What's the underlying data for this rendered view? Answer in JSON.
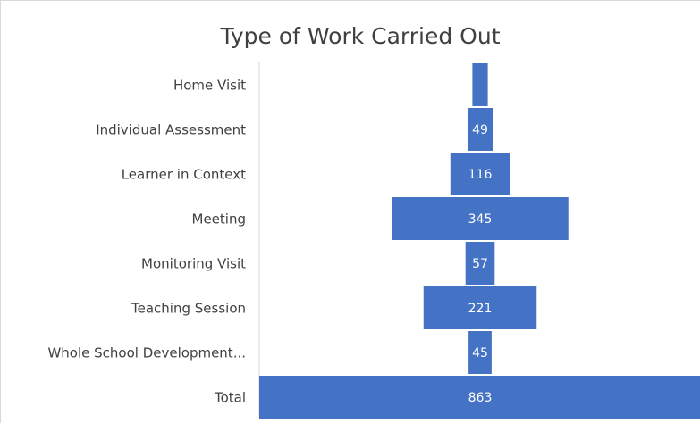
{
  "chart_data": {
    "type": "funnel",
    "title": "Type of Work Carried Out",
    "categories": [
      "Home Visit",
      "Individual Assessment",
      "Learner in Context",
      "Meeting",
      "Monitoring Visit",
      "Teaching Session",
      "Whole School Development...",
      "Total"
    ],
    "values": [
      30,
      49,
      116,
      345,
      57,
      221,
      45,
      863
    ],
    "color": "#4472c4"
  }
}
